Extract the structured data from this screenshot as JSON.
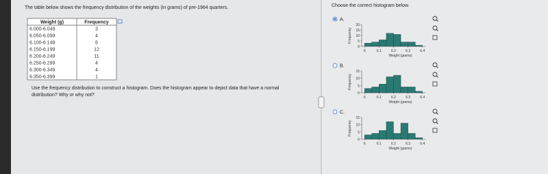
{
  "left": {
    "intro": "The table below shows the frequency distribution of the weights (in grams) of pre-1964 quarters.",
    "table": {
      "headers": [
        "Weight (g)",
        "Frequency"
      ],
      "rows": [
        [
          "6.000-6.049",
          3
        ],
        [
          "6.050-6.099",
          4
        ],
        [
          "6.100-6.149",
          6
        ],
        [
          "6.150-6.199",
          12
        ],
        [
          "6.200-6.249",
          11
        ],
        [
          "6.250-6.299",
          4
        ],
        [
          "6.300-6.349",
          4
        ],
        [
          "6.350-6.399",
          1
        ]
      ]
    },
    "question": [
      "Use the frequency distribution to construct a histogram. Does the histogram appear to depict data that have a normal",
      "distribution? Why or why not?"
    ]
  },
  "right": {
    "prompt": "Choose the correct histogram below.",
    "options": [
      {
        "label": "A.",
        "selected": true,
        "chart": {
          "type": "histogram",
          "x_label": "Weight (grams)",
          "y_label": "Frequency",
          "bins": [
            6,
            6.05,
            6.1,
            6.15,
            6.2,
            6.25,
            6.3,
            6.35,
            6.4
          ],
          "counts": [
            3,
            4,
            6,
            12,
            11,
            4,
            4,
            1
          ],
          "color": "#2a7a73",
          "xlim": [
            5.98,
            6.42
          ],
          "ylim": [
            0,
            20
          ],
          "xticks": [
            6,
            6.1,
            6.2,
            6.3,
            6.4
          ],
          "yticks": [
            0,
            5,
            10,
            15,
            20
          ]
        }
      },
      {
        "label": "B.",
        "selected": false,
        "chart": {
          "type": "histogram",
          "x_label": "Weight (grams)",
          "y_label": "Frequency",
          "bins": [
            6,
            6.05,
            6.1,
            6.15,
            6.2,
            6.25,
            6.3,
            6.35,
            6.4
          ],
          "counts": [
            3,
            4,
            6,
            11,
            12,
            4,
            4,
            1
          ],
          "color": "#2a7a73",
          "xlim": [
            5.98,
            6.42
          ],
          "ylim": [
            0,
            15
          ],
          "xticks": [
            6,
            6.1,
            6.2,
            6.3,
            6.4
          ],
          "yticks": [
            0,
            5,
            10,
            15
          ]
        }
      },
      {
        "label": "C.",
        "selected": false,
        "chart": {
          "type": "histogram",
          "x_label": "Weight (grams)",
          "y_label": "Frequency",
          "bins": [
            6,
            6.05,
            6.1,
            6.15,
            6.2,
            6.25,
            6.3,
            6.35,
            6.4
          ],
          "counts": [
            3,
            4,
            6,
            12,
            4,
            11,
            4,
            1
          ],
          "color": "#2a7a73",
          "xlim": [
            5.98,
            6.42
          ],
          "ylim": [
            0,
            15
          ],
          "xticks": [
            6,
            6.1,
            6.2,
            6.3,
            6.4
          ],
          "yticks": [
            0,
            5,
            10,
            15
          ]
        }
      }
    ]
  }
}
